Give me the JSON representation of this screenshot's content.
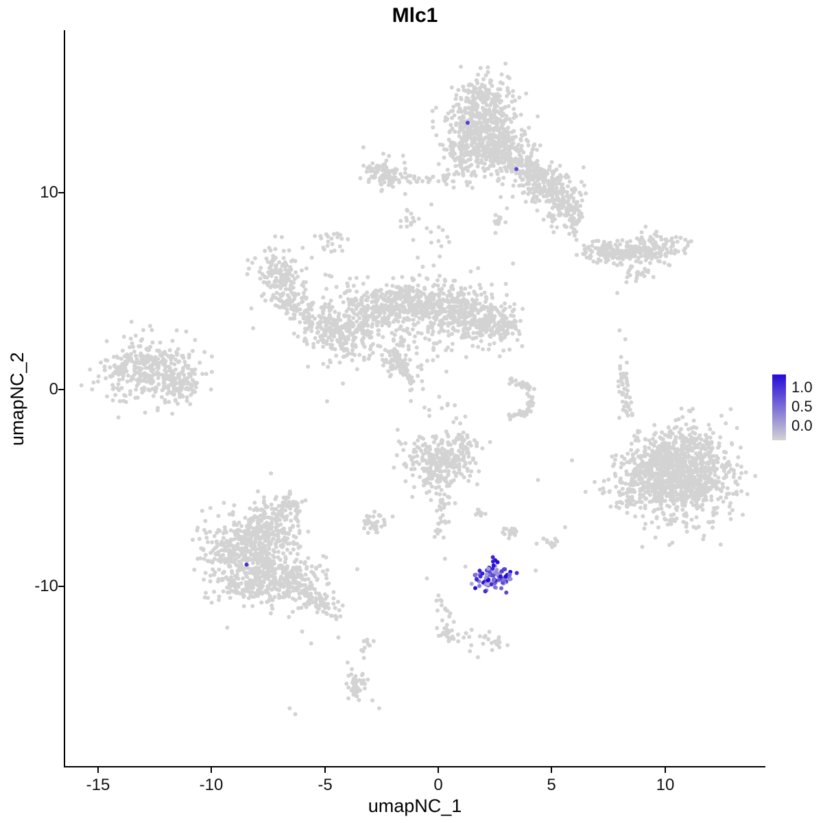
{
  "page": {
    "background": "#FFFFFF"
  },
  "chart_data": {
    "type": "scatter",
    "title": "Mlc1",
    "xlabel": "umapNC_1",
    "ylabel": "umapNC_2",
    "xlim": [
      -16.45,
      14.4
    ],
    "ylim": [
      -19.17,
      18.22
    ],
    "xticks": [
      "-15",
      "-10",
      "-5",
      "0",
      "5",
      "10"
    ],
    "yticks": [
      "10",
      "0",
      "-10"
    ],
    "grid": false,
    "legend": {
      "position": "right",
      "ticks": [
        "1.0",
        "0.5",
        "0.0"
      ],
      "color_low": "#D3D3D3",
      "color_high": "#250BD8"
    },
    "point_color_gray": "#D3D3D3",
    "gray_clusters": [
      {
        "t": "g",
        "cx": 1.9,
        "cy": 13.5,
        "sx": 0.75,
        "sy": 1.0,
        "n": 430
      },
      {
        "t": "g",
        "cx": 2.7,
        "cy": 12.3,
        "sx": 0.75,
        "sy": 0.55,
        "n": 170
      },
      {
        "t": "g",
        "cx": 1.15,
        "cy": 12.1,
        "sx": 0.45,
        "sy": 0.5,
        "n": 80
      },
      {
        "t": "g",
        "cx": 2.2,
        "cy": 15.1,
        "sx": 0.5,
        "sy": 0.35,
        "n": 60
      },
      {
        "t": "g",
        "cx": 1.7,
        "cy": 10.9,
        "sx": 0.8,
        "sy": 0.4,
        "n": 35
      },
      {
        "t": "g",
        "cx": 4.0,
        "cy": 11.1,
        "sx": 0.65,
        "sy": 0.45,
        "n": 140,
        "rot": -28
      },
      {
        "t": "g",
        "cx": 5.0,
        "cy": 10.2,
        "sx": 0.7,
        "sy": 0.5,
        "n": 150,
        "rot": -30
      },
      {
        "t": "g",
        "cx": 5.6,
        "cy": 9.2,
        "sx": 0.4,
        "sy": 0.45,
        "n": 70
      },
      {
        "t": "g",
        "cx": 5.95,
        "cy": 8.5,
        "sx": 0.28,
        "sy": 0.35,
        "n": 30
      },
      {
        "t": "g",
        "cx": -2.3,
        "cy": 11.0,
        "sx": 0.5,
        "sy": 0.35,
        "n": 90
      },
      {
        "t": "g",
        "cx": -0.7,
        "cy": 10.7,
        "sx": 0.85,
        "sy": 0.14,
        "n": 30
      },
      {
        "t": "g",
        "cx": -1.35,
        "cy": 8.7,
        "sx": 0.2,
        "sy": 0.25,
        "n": 13
      },
      {
        "t": "g",
        "cx": -4.6,
        "cy": 7.6,
        "sx": 0.3,
        "sy": 0.28,
        "n": 20
      },
      {
        "t": "g",
        "cx": 2.55,
        "cy": 8.6,
        "sx": 0.2,
        "sy": 0.22,
        "n": 13
      },
      {
        "t": "g",
        "cx": 0.0,
        "cy": 7.6,
        "sx": 0.5,
        "sy": 1.0,
        "n": 10
      },
      {
        "t": "g",
        "cx": -7.1,
        "cy": 5.8,
        "sx": 0.55,
        "sy": 0.7,
        "n": 130
      },
      {
        "t": "g",
        "cx": -6.4,
        "cy": 4.5,
        "sx": 0.35,
        "sy": 0.55,
        "n": 55,
        "rot": 20
      },
      {
        "t": "g",
        "cx": -5.2,
        "cy": 3.3,
        "sx": 0.6,
        "sy": 0.6,
        "n": 110
      },
      {
        "t": "g",
        "cx": -4.0,
        "cy": 2.7,
        "sx": 0.7,
        "sy": 0.6,
        "n": 150
      },
      {
        "t": "g",
        "cx": -3.0,
        "cy": 3.9,
        "sx": 0.7,
        "sy": 0.7,
        "n": 170
      },
      {
        "t": "g",
        "cx": -1.6,
        "cy": 4.4,
        "sx": 0.8,
        "sy": 0.6,
        "n": 190
      },
      {
        "t": "g",
        "cx": 0.0,
        "cy": 4.1,
        "sx": 0.8,
        "sy": 0.65,
        "n": 210
      },
      {
        "t": "g",
        "cx": 1.6,
        "cy": 3.8,
        "sx": 0.8,
        "sy": 0.7,
        "n": 230
      },
      {
        "t": "g",
        "cx": 2.7,
        "cy": 3.1,
        "sx": 0.45,
        "sy": 0.5,
        "n": 80
      },
      {
        "t": "g",
        "cx": -1.9,
        "cy": 1.8,
        "sx": 0.4,
        "sy": 0.65,
        "n": 65
      },
      {
        "t": "s",
        "x1": -2.1,
        "y1": 2.1,
        "x2": -1.0,
        "y2": 0.0,
        "n": 50,
        "j": 0.09
      },
      {
        "t": "g",
        "cx": -4.7,
        "cy": 4.8,
        "sx": 1.2,
        "sy": 1.0,
        "n": 40
      },
      {
        "t": "g",
        "cx": -0.5,
        "cy": 2.4,
        "sx": 1.3,
        "sy": 0.9,
        "n": 40
      },
      {
        "t": "g",
        "cx": 0.1,
        "cy": -1.2,
        "sx": 0.6,
        "sy": 0.9,
        "n": 16
      },
      {
        "t": "g",
        "cx": -12.9,
        "cy": 1.0,
        "sx": 1.0,
        "sy": 0.75,
        "n": 340
      },
      {
        "t": "g",
        "cx": -11.4,
        "cy": 0.3,
        "sx": 0.55,
        "sy": 0.45,
        "n": 90
      },
      {
        "t": "g",
        "cx": 7.3,
        "cy": 6.9,
        "sx": 0.6,
        "sy": 0.33,
        "n": 100
      },
      {
        "t": "g",
        "cx": 9.5,
        "cy": 7.1,
        "sx": 0.85,
        "sy": 0.4,
        "n": 150,
        "rot": 8
      },
      {
        "t": "s",
        "x1": 8.0,
        "y1": 6.95,
        "x2": 8.9,
        "y2": 7.1,
        "n": 18,
        "j": 0.13
      },
      {
        "t": "g",
        "cx": 8.9,
        "cy": 5.8,
        "sx": 0.3,
        "sy": 0.25,
        "n": 22
      },
      {
        "t": "s",
        "x1": 8.15,
        "y1": 1.6,
        "x2": 8.3,
        "y2": -1.3,
        "n": 45,
        "j": 0.11
      },
      {
        "t": "g",
        "cx": 10.8,
        "cy": -4.3,
        "sx": 1.15,
        "sy": 1.15,
        "n": 950
      },
      {
        "t": "g",
        "cx": 9.6,
        "cy": -4.5,
        "sx": 0.7,
        "sy": 0.95,
        "n": 220
      },
      {
        "t": "g",
        "cx": 8.4,
        "cy": -5.1,
        "sx": 0.5,
        "sy": 0.7,
        "n": 60
      },
      {
        "t": "g",
        "cx": 0.0,
        "cy": -3.8,
        "sx": 0.75,
        "sy": 0.7,
        "n": 260
      },
      {
        "t": "g",
        "cx": 1.1,
        "cy": -2.9,
        "sx": 0.35,
        "sy": 0.35,
        "n": 50
      },
      {
        "t": "s",
        "x1": 0.3,
        "y1": -5.3,
        "x2": 0.05,
        "y2": -7.4,
        "n": 30,
        "j": 0.18
      },
      {
        "t": "g",
        "cx": -2.75,
        "cy": -6.7,
        "sx": 0.3,
        "sy": 0.28,
        "n": 32
      },
      {
        "t": "s",
        "x1": 2.95,
        "y1": 0.5,
        "x2": 4.05,
        "y2": 0.15,
        "n": 22,
        "j": 0.12
      },
      {
        "t": "s",
        "x1": 4.1,
        "y1": 0.1,
        "x2": 4.0,
        "y2": -1.05,
        "n": 22,
        "j": 0.12
      },
      {
        "t": "s",
        "x1": 3.95,
        "y1": -1.15,
        "x2": 2.95,
        "y2": -1.45,
        "n": 20,
        "j": 0.12
      },
      {
        "t": "g",
        "cx": 3.2,
        "cy": -7.25,
        "sx": 0.22,
        "sy": 0.2,
        "n": 18
      },
      {
        "t": "g",
        "cx": 4.95,
        "cy": -7.8,
        "sx": 0.25,
        "sy": 0.18,
        "n": 14
      },
      {
        "t": "g",
        "cx": 1.95,
        "cy": -6.2,
        "sx": 0.15,
        "sy": 0.15,
        "n": 8
      },
      {
        "t": "g",
        "cx": -8.7,
        "cy": -8.1,
        "sx": 0.95,
        "sy": 0.95,
        "n": 330
      },
      {
        "t": "g",
        "cx": -7.3,
        "cy": -7.1,
        "sx": 0.7,
        "sy": 0.8,
        "n": 200
      },
      {
        "t": "g",
        "cx": -7.8,
        "cy": -9.6,
        "sx": 0.9,
        "sy": 0.7,
        "n": 240
      },
      {
        "t": "g",
        "cx": -6.3,
        "cy": -9.9,
        "sx": 0.7,
        "sy": 0.55,
        "n": 150
      },
      {
        "t": "s",
        "x1": -5.9,
        "y1": -10.4,
        "x2": -4.4,
        "y2": -11.3,
        "n": 55,
        "j": 0.28
      },
      {
        "t": "g",
        "cx": -6.6,
        "cy": -5.9,
        "sx": 0.35,
        "sy": 0.4,
        "n": 45
      },
      {
        "t": "g",
        "cx": -3.6,
        "cy": -14.9,
        "sx": 0.22,
        "sy": 0.5,
        "n": 45
      },
      {
        "t": "s",
        "x1": -3.5,
        "y1": -14.0,
        "x2": -3.1,
        "y2": -12.6,
        "n": 10,
        "j": 0.13
      },
      {
        "t": "s",
        "x1": 0.1,
        "y1": -10.5,
        "x2": 0.45,
        "y2": -12.2,
        "n": 14,
        "j": 0.16
      },
      {
        "t": "g",
        "cx": 0.55,
        "cy": -12.4,
        "sx": 0.35,
        "sy": 0.25,
        "n": 28
      },
      {
        "t": "g",
        "cx": 2.2,
        "cy": -12.7,
        "sx": 0.3,
        "sy": 0.22,
        "n": 18
      }
    ],
    "gray_singles": [
      [
        -6.0,
        -12.3
      ],
      [
        -5.6,
        -12.9
      ],
      [
        -6.3,
        -16.5
      ],
      [
        -6.55,
        -16.2
      ],
      [
        -2.6,
        -16.2
      ],
      [
        -2.9,
        -15.8
      ],
      [
        1.4,
        -13.3
      ],
      [
        1.75,
        -13.6
      ],
      [
        2.7,
        -13.1
      ],
      [
        6.9,
        -4.7
      ],
      [
        6.5,
        -5.2
      ],
      [
        10.2,
        -7.9
      ],
      [
        9.0,
        -8.0
      ],
      [
        5.6,
        -7.0
      ],
      [
        4.3,
        -9.2
      ],
      [
        8.0,
        3.0
      ],
      [
        8.25,
        2.55
      ],
      [
        12.9,
        -1.0
      ],
      [
        -0.3,
        9.4
      ],
      [
        0.2,
        8.1
      ],
      [
        -9.3,
        -12.1
      ],
      [
        -4.4,
        -12.6
      ],
      [
        3.3,
        6.4
      ],
      [
        -3.3,
        12.3
      ],
      [
        1.0,
        16.4
      ],
      [
        4.5,
        12.4
      ],
      [
        7.9,
        4.9
      ],
      [
        -15.0,
        0.4
      ],
      [
        -10.3,
        1.9
      ],
      [
        0.3,
        -8.6
      ],
      [
        1.2,
        -9.0
      ],
      [
        -0.5,
        -9.6
      ],
      [
        4.4,
        -4.6
      ],
      [
        5.9,
        -3.6
      ],
      [
        -4.9,
        -0.6
      ],
      [
        -4.2,
        0.3
      ],
      [
        -0.9,
        6.7
      ],
      [
        -0.2,
        6.3
      ]
    ],
    "expression_cluster": {
      "cx": 2.5,
      "cy": -9.55,
      "sx": 0.42,
      "sy": 0.3,
      "n": 85,
      "vmin": 0.15,
      "vmax": 1.0
    },
    "expression_points": [
      {
        "x": 1.3,
        "y": 13.55,
        "v": 0.75
      },
      {
        "x": 3.45,
        "y": 11.2,
        "v": 0.7
      },
      {
        "x": -8.45,
        "y": -8.9,
        "v": 0.8
      },
      {
        "x": 2.52,
        "y": -8.68,
        "v": 1.0
      },
      {
        "x": 2.62,
        "y": -8.78,
        "v": 1.0
      },
      {
        "x": 2.42,
        "y": -8.74,
        "v": 0.9
      },
      {
        "x": 2.2,
        "y": -9.7,
        "v": 1.0
      },
      {
        "x": 2.75,
        "y": -9.5,
        "v": 0.95
      },
      {
        "x": 1.95,
        "y": -9.35,
        "v": 0.9
      },
      {
        "x": 2.35,
        "y": -9.9,
        "v": 0.85
      }
    ]
  }
}
